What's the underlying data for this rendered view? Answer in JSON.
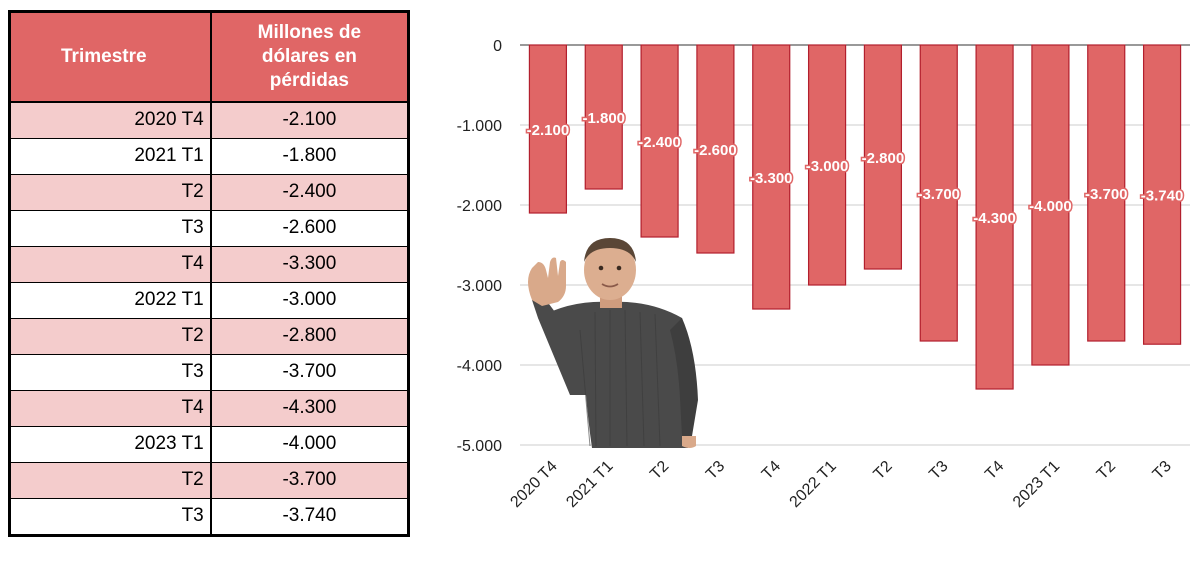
{
  "table": {
    "headers": [
      "Trimestre",
      "Millones de dólares en pérdidas"
    ],
    "header_lines": [
      "Millones de",
      "dólares en",
      "pérdidas"
    ],
    "rows": [
      {
        "quarter": "2020 T4",
        "value": "-2.100"
      },
      {
        "quarter": "2021 T1",
        "value": "-1.800"
      },
      {
        "quarter": "T2",
        "value": "-2.400"
      },
      {
        "quarter": "T3",
        "value": "-2.600"
      },
      {
        "quarter": "T4",
        "value": "-3.300"
      },
      {
        "quarter": "2022 T1",
        "value": "-3.000"
      },
      {
        "quarter": "T2",
        "value": "-2.800"
      },
      {
        "quarter": "T3",
        "value": "-3.700"
      },
      {
        "quarter": "T4",
        "value": "-4.300"
      },
      {
        "quarter": "2023 T1",
        "value": "-4.000"
      },
      {
        "quarter": "T2",
        "value": "-3.700"
      },
      {
        "quarter": "T3",
        "value": "-3.740"
      }
    ]
  },
  "colors": {
    "accent": "#e06666",
    "row_tint": "#f4cccc",
    "bar_stroke": "#b21f2d",
    "grid": "#cccccc"
  },
  "illustration": "waving-avatar",
  "chart_data": {
    "type": "bar",
    "categories": [
      "2020 T4",
      "2021 T1",
      "T2",
      "T3",
      "T4",
      "2022 T1",
      "T2",
      "T3",
      "T4",
      "2023 T1",
      "T2",
      "T3"
    ],
    "values": [
      -2100,
      -1800,
      -2400,
      -2600,
      -3300,
      -3000,
      -2800,
      -3700,
      -4300,
      -4000,
      -3700,
      -3740
    ],
    "value_labels": [
      "-2.100",
      "-1.800",
      "-2.400",
      "-2.600",
      "-3.300",
      "-3.000",
      "-2.800",
      "-3.700",
      "-4.300",
      "-4.000",
      "-3.700",
      "-3.740"
    ],
    "yticks": [
      0,
      -1000,
      -2000,
      -3000,
      -4000,
      -5000
    ],
    "ytick_labels": [
      "0",
      "-1.000",
      "-2.000",
      "-3.000",
      "-4.000",
      "-5.000"
    ],
    "ylim": [
      -5000,
      0
    ],
    "title": "",
    "xlabel": "",
    "ylabel": "",
    "grid": true,
    "legend": "none"
  }
}
